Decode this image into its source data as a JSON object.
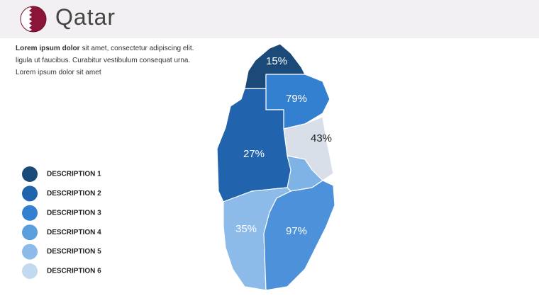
{
  "header": {
    "title": "Qatar"
  },
  "intro": {
    "bold": "Lorem ipsum dolor",
    "lines": [
      "sit amet, consectetur adipiscing elit.",
      "ligula ut faucibus. Curabitur vestibulum consequat urna.",
      "Lorem ipsum dolor sit amet"
    ]
  },
  "legend": [
    {
      "label": "DESCRIPTION 1",
      "color": "#1c4a78"
    },
    {
      "label": "DESCRIPTION 2",
      "color": "#2263ae"
    },
    {
      "label": "DESCRIPTION 3",
      "color": "#3380d0"
    },
    {
      "label": "DESCRIPTION 4",
      "color": "#5b9edd"
    },
    {
      "label": "DESCRIPTION 5",
      "color": "#8dbbe9"
    },
    {
      "label": "DESCRIPTION 6",
      "color": "#c3d9f0"
    }
  ],
  "regions": [
    {
      "label": "15%",
      "color": "#1c4a78"
    },
    {
      "label": "79%",
      "color": "#3380d0"
    },
    {
      "label": "43%",
      "color": "#d9dfe8"
    },
    {
      "label": "27%",
      "color": "#2263ae"
    },
    {
      "label": "35%",
      "color": "#8dbbe9"
    },
    {
      "label": "97%",
      "color": "#4c91da"
    }
  ]
}
